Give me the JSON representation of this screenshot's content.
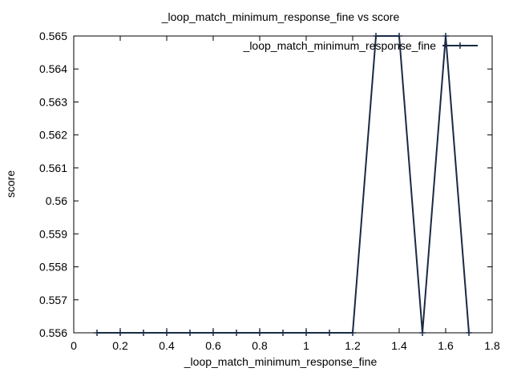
{
  "chart_data": {
    "type": "line",
    "title": "_loop_match_minimum_response_fine vs score",
    "xlabel": "_loop_match_minimum_response_fine",
    "ylabel": "score",
    "xlim": [
      0,
      1.8
    ],
    "ylim": [
      0.556,
      0.565
    ],
    "x_ticks": [
      "0",
      "0.2",
      "0.4",
      "0.6",
      "0.8",
      "1",
      "1.2",
      "1.4",
      "1.6",
      "1.8"
    ],
    "y_ticks": [
      "0.556",
      "0.557",
      "0.558",
      "0.559",
      "0.56",
      "0.561",
      "0.562",
      "0.563",
      "0.564",
      "0.565"
    ],
    "grid": false,
    "legend_position": "top-right",
    "series": [
      {
        "name": "_loop_match_minimum_response_fine",
        "color": "#1a2a44",
        "marker": "plus",
        "x": [
          0.1,
          0.2,
          0.3,
          0.4,
          0.5,
          0.6,
          0.7,
          0.8,
          0.9,
          1.0,
          1.1,
          1.2,
          1.3,
          1.4,
          1.5,
          1.6,
          1.7
        ],
        "y": [
          0.556,
          0.556,
          0.556,
          0.556,
          0.556,
          0.556,
          0.556,
          0.556,
          0.556,
          0.556,
          0.556,
          0.556,
          0.565,
          0.565,
          0.556,
          0.565,
          0.556
        ]
      }
    ]
  }
}
